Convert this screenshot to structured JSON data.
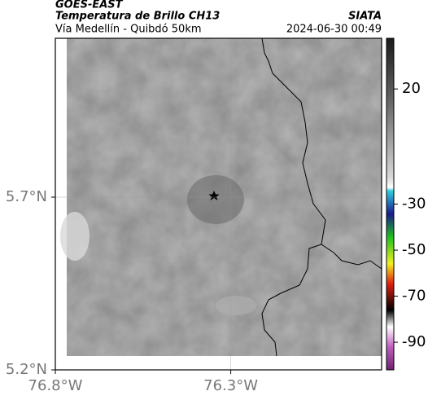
{
  "header": {
    "satellite": "GOES-EAST",
    "product": "Temperatura de Brillo CH13",
    "source": "SIATA",
    "region": "Vía Medellín - Quibdó 50km",
    "timestamp": "2024-06-30 00:49"
  },
  "map": {
    "xlim": [
      -76.8,
      -75.87
    ],
    "ylim": [
      5.2,
      6.16
    ],
    "xticks": [
      {
        "value": -76.8,
        "label": "76.8°W"
      },
      {
        "value": -76.3,
        "label": "76.3°W"
      }
    ],
    "yticks": [
      {
        "value": 5.2,
        "label": "5.2°N"
      },
      {
        "value": 5.7,
        "label": "5.7°N"
      }
    ],
    "grid": true
  },
  "colorbar": {
    "lim": [
      -102,
      42
    ],
    "ticks": [
      20,
      -30,
      -50,
      -70,
      -90
    ]
  }
}
